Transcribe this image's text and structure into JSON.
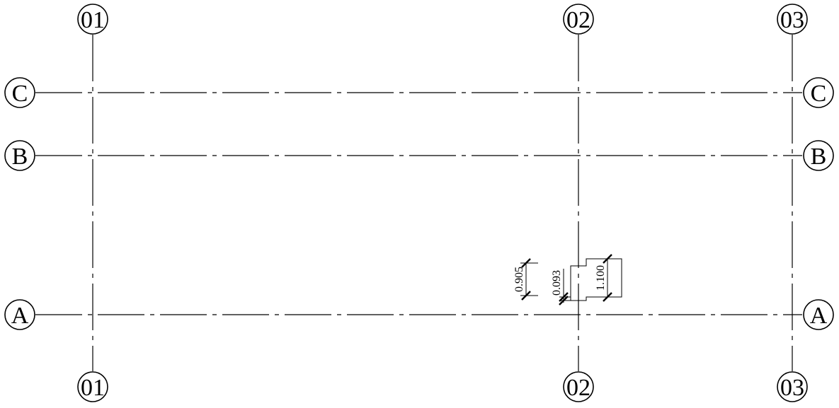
{
  "grid": {
    "vertical_labels": [
      "01",
      "02",
      "03"
    ],
    "horizontal_labels": [
      "C",
      "B",
      "A"
    ]
  },
  "dimensions": [
    {
      "label": "0.905"
    },
    {
      "label": "0.093"
    },
    {
      "label": "1.100"
    }
  ],
  "colors": {
    "line": "#000000",
    "background": "#ffffff"
  }
}
